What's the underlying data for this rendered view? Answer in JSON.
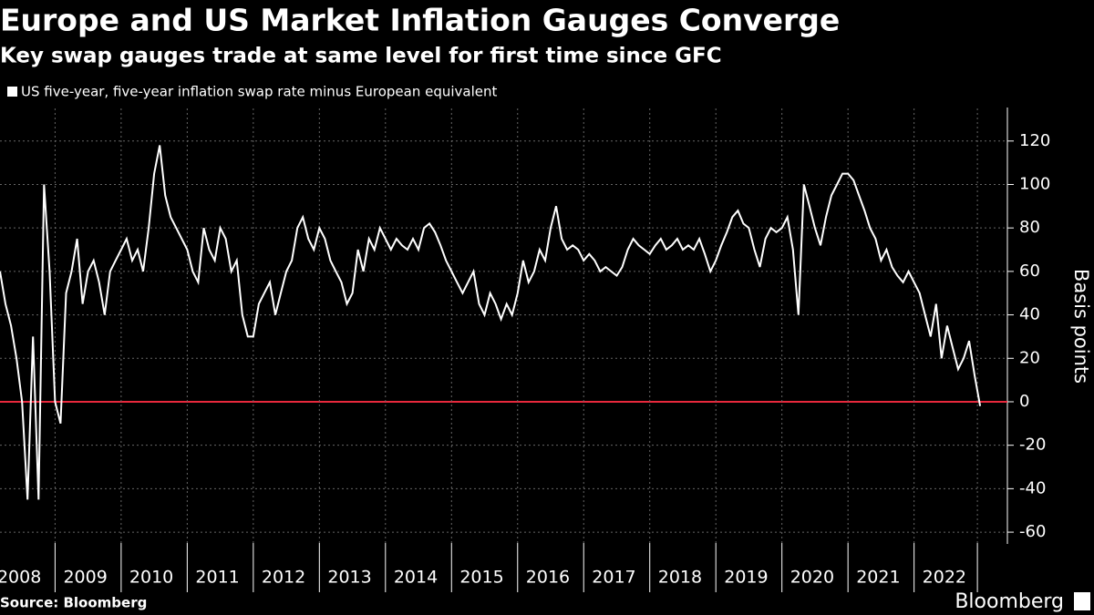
{
  "chart_data": {
    "type": "line",
    "title": "Europe and US Market Inflation Gauges Converge",
    "subtitle": "Key swap gauges trade at same level for first time since GFC",
    "y_axis_label": "Basis points",
    "source": "Source: Bloomberg",
    "logo": "Bloomberg",
    "categories": [
      null,
      null,
      null,
      null,
      "2008",
      null,
      null,
      null,
      null,
      null,
      null,
      null,
      null,
      null,
      null,
      null,
      "2009",
      null,
      null,
      null,
      null,
      null,
      null,
      null,
      null,
      null,
      null,
      null,
      "2010",
      null,
      null,
      null,
      null,
      null,
      null,
      null,
      null,
      null,
      null,
      null,
      "2011",
      null,
      null,
      null,
      null,
      null,
      null,
      null,
      null,
      null,
      null,
      null,
      "2012",
      null,
      null,
      null,
      null,
      null,
      null,
      null,
      null,
      null,
      null,
      null,
      "2013",
      null,
      null,
      null,
      null,
      null,
      null,
      null,
      null,
      null,
      null,
      null,
      "2014",
      null,
      null,
      null,
      null,
      null,
      null,
      null,
      null,
      null,
      null,
      null,
      "2015",
      null,
      null,
      null,
      null,
      null,
      null,
      null,
      null,
      null,
      null,
      null,
      "2016",
      null,
      null,
      null,
      null,
      null,
      null,
      null,
      null,
      null,
      null,
      null,
      "2017",
      null,
      null,
      null,
      null,
      null,
      null,
      null,
      null,
      null,
      null,
      null,
      "2018",
      null,
      null,
      null,
      null,
      null,
      null,
      null,
      null,
      null,
      null,
      null,
      "2019",
      null,
      null,
      null,
      null,
      null,
      null,
      null,
      null,
      null,
      null,
      null,
      "2020",
      null,
      null,
      null,
      null,
      null,
      null,
      null,
      null,
      null,
      null,
      null,
      "2021",
      null,
      null,
      null,
      null,
      null,
      null,
      null,
      null,
      null,
      null,
      null,
      "2022",
      null,
      null,
      null,
      null,
      null,
      null
    ],
    "series": [
      {
        "name": "US five-year, five-year inflation swap rate minus European equivalent",
        "color": "#ffffff",
        "values": [
          60,
          45,
          35,
          20,
          0,
          -45,
          30,
          -45,
          100,
          60,
          0,
          -10,
          50,
          60,
          75,
          45,
          60,
          65,
          55,
          40,
          60,
          65,
          70,
          75,
          65,
          70,
          60,
          80,
          105,
          118,
          95,
          85,
          80,
          75,
          70,
          60,
          55,
          80,
          70,
          65,
          80,
          75,
          60,
          65,
          40,
          30,
          30,
          45,
          50,
          55,
          40,
          50,
          60,
          65,
          80,
          85,
          75,
          70,
          80,
          75,
          65,
          60,
          55,
          45,
          50,
          70,
          60,
          75,
          70,
          80,
          75,
          70,
          75,
          72,
          70,
          75,
          70,
          80,
          82,
          78,
          72,
          65,
          60,
          55,
          50,
          55,
          60,
          45,
          40,
          50,
          45,
          38,
          45,
          40,
          50,
          65,
          55,
          60,
          70,
          65,
          80,
          90,
          75,
          70,
          72,
          70,
          65,
          68,
          65,
          60,
          62,
          60,
          58,
          62,
          70,
          75,
          72,
          70,
          68,
          72,
          75,
          70,
          72,
          75,
          70,
          72,
          70,
          75,
          68,
          60,
          65,
          72,
          78,
          85,
          88,
          82,
          80,
          70,
          62,
          75,
          80,
          78,
          80,
          85,
          70,
          40,
          100,
          90,
          80,
          72,
          85,
          95,
          100,
          105,
          105,
          102,
          95,
          88,
          80,
          75,
          65,
          70,
          62,
          58,
          55,
          60,
          55,
          50,
          40,
          30,
          45,
          20,
          35,
          25,
          15,
          20,
          28,
          12,
          -2
        ]
      }
    ],
    "zero_line_color": "#e8283c",
    "ylim": [
      -65,
      135
    ],
    "yticks": [
      -60,
      -40,
      -20,
      0,
      20,
      40,
      60,
      80,
      100,
      120
    ],
    "grid": true
  }
}
